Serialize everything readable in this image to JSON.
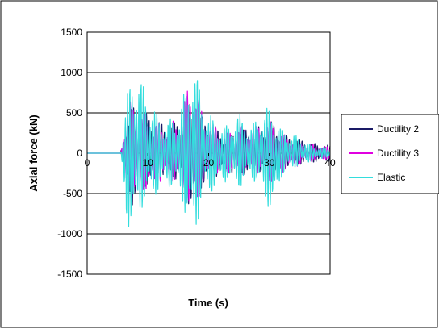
{
  "colors": {
    "ductility2": "#1a1a66",
    "ductility3": "#e000e0",
    "elastic": "#33dddd",
    "gridline": "#000000",
    "frame": "#000000"
  },
  "chart_data": {
    "type": "line",
    "xlabel": "Time (s)",
    "ylabel": "Axial force (kN)",
    "xlim": [
      0,
      40
    ],
    "ylim": [
      -1500,
      1500
    ],
    "x_ticks": [
      "0",
      "10",
      "20",
      "30",
      "40"
    ],
    "y_ticks": [
      "1500",
      "1000",
      "500",
      "0",
      "-500",
      "-1000",
      "-1500"
    ],
    "grid": "horizontal major",
    "legend_position": "right",
    "series": [
      {
        "name": "Ductility 2",
        "color_key": "ductility2",
        "peak_envelope": [
          [
            0,
            0
          ],
          [
            5.5,
            0
          ],
          [
            6.5,
            500
          ],
          [
            7.5,
            600
          ],
          [
            9,
            550
          ],
          [
            11,
            450
          ],
          [
            13,
            350
          ],
          [
            15,
            400
          ],
          [
            16.5,
            600
          ],
          [
            17.5,
            700
          ],
          [
            19,
            450
          ],
          [
            21,
            350
          ],
          [
            23,
            200
          ],
          [
            25,
            320
          ],
          [
            27,
            300
          ],
          [
            29,
            350
          ],
          [
            30.5,
            400
          ],
          [
            32,
            250
          ],
          [
            35,
            180
          ],
          [
            37,
            130
          ],
          [
            40,
            100
          ]
        ],
        "trough_envelope": [
          [
            0,
            0
          ],
          [
            5.5,
            0
          ],
          [
            6.5,
            -500
          ],
          [
            7.5,
            -650
          ],
          [
            9,
            -450
          ],
          [
            11,
            -400
          ],
          [
            13,
            -300
          ],
          [
            15,
            -350
          ],
          [
            16.5,
            -600
          ],
          [
            17.5,
            -750
          ],
          [
            19,
            -400
          ],
          [
            21,
            -300
          ],
          [
            23,
            -250
          ],
          [
            25,
            -300
          ],
          [
            27,
            -250
          ],
          [
            29,
            -250
          ],
          [
            30.5,
            -350
          ],
          [
            32,
            -200
          ],
          [
            35,
            -150
          ],
          [
            37,
            -120
          ],
          [
            40,
            -100
          ]
        ]
      },
      {
        "name": "Ductility 3",
        "color_key": "ductility3",
        "peak_envelope": [
          [
            0,
            0
          ],
          [
            5.5,
            0
          ],
          [
            6.5,
            550
          ],
          [
            7.5,
            700
          ],
          [
            9,
            500
          ],
          [
            11,
            400
          ],
          [
            13,
            350
          ],
          [
            15,
            450
          ],
          [
            16.5,
            800
          ],
          [
            17.5,
            1000
          ],
          [
            19,
            500
          ],
          [
            21,
            350
          ],
          [
            23,
            250
          ],
          [
            25,
            350
          ],
          [
            27,
            300
          ],
          [
            29,
            400
          ],
          [
            30.5,
            400
          ],
          [
            32,
            250
          ],
          [
            35,
            150
          ],
          [
            37,
            120
          ],
          [
            40,
            80
          ]
        ],
        "trough_envelope": [
          [
            0,
            0
          ],
          [
            5.5,
            0
          ],
          [
            6.5,
            -550
          ],
          [
            7.5,
            -700
          ],
          [
            9,
            -500
          ],
          [
            11,
            -450
          ],
          [
            13,
            -350
          ],
          [
            15,
            -400
          ],
          [
            16.5,
            -700
          ],
          [
            17.5,
            -850
          ],
          [
            19,
            -450
          ],
          [
            21,
            -350
          ],
          [
            23,
            -250
          ],
          [
            25,
            -300
          ],
          [
            27,
            -250
          ],
          [
            29,
            -300
          ],
          [
            30.5,
            -400
          ],
          [
            32,
            -250
          ],
          [
            35,
            -150
          ],
          [
            37,
            -100
          ],
          [
            40,
            -80
          ]
        ]
      },
      {
        "name": "Elastic",
        "color_key": "elastic",
        "peak_envelope": [
          [
            0,
            0
          ],
          [
            5.5,
            0
          ],
          [
            6.5,
            700
          ],
          [
            7.5,
            1100
          ],
          [
            9,
            900
          ],
          [
            11,
            550
          ],
          [
            13,
            400
          ],
          [
            15,
            500
          ],
          [
            16.5,
            900
          ],
          [
            17.5,
            1200
          ],
          [
            19,
            650
          ],
          [
            21,
            400
          ],
          [
            23,
            350
          ],
          [
            25,
            500
          ],
          [
            27,
            350
          ],
          [
            29,
            550
          ],
          [
            30.5,
            600
          ],
          [
            32,
            300
          ],
          [
            35,
            200
          ],
          [
            37,
            100
          ],
          [
            40,
            50
          ]
        ],
        "trough_envelope": [
          [
            0,
            0
          ],
          [
            5.5,
            0
          ],
          [
            6.5,
            -850
          ],
          [
            7.5,
            -1050
          ],
          [
            9,
            -700
          ],
          [
            11,
            -550
          ],
          [
            13,
            -400
          ],
          [
            15,
            -500
          ],
          [
            16.5,
            -850
          ],
          [
            17.5,
            -1130
          ],
          [
            19,
            -600
          ],
          [
            21,
            -450
          ],
          [
            23,
            -350
          ],
          [
            25,
            -450
          ],
          [
            27,
            -300
          ],
          [
            29,
            -550
          ],
          [
            30.5,
            -800
          ],
          [
            32,
            -300
          ],
          [
            35,
            -150
          ],
          [
            37,
            -100
          ],
          [
            40,
            -50
          ]
        ]
      }
    ]
  }
}
